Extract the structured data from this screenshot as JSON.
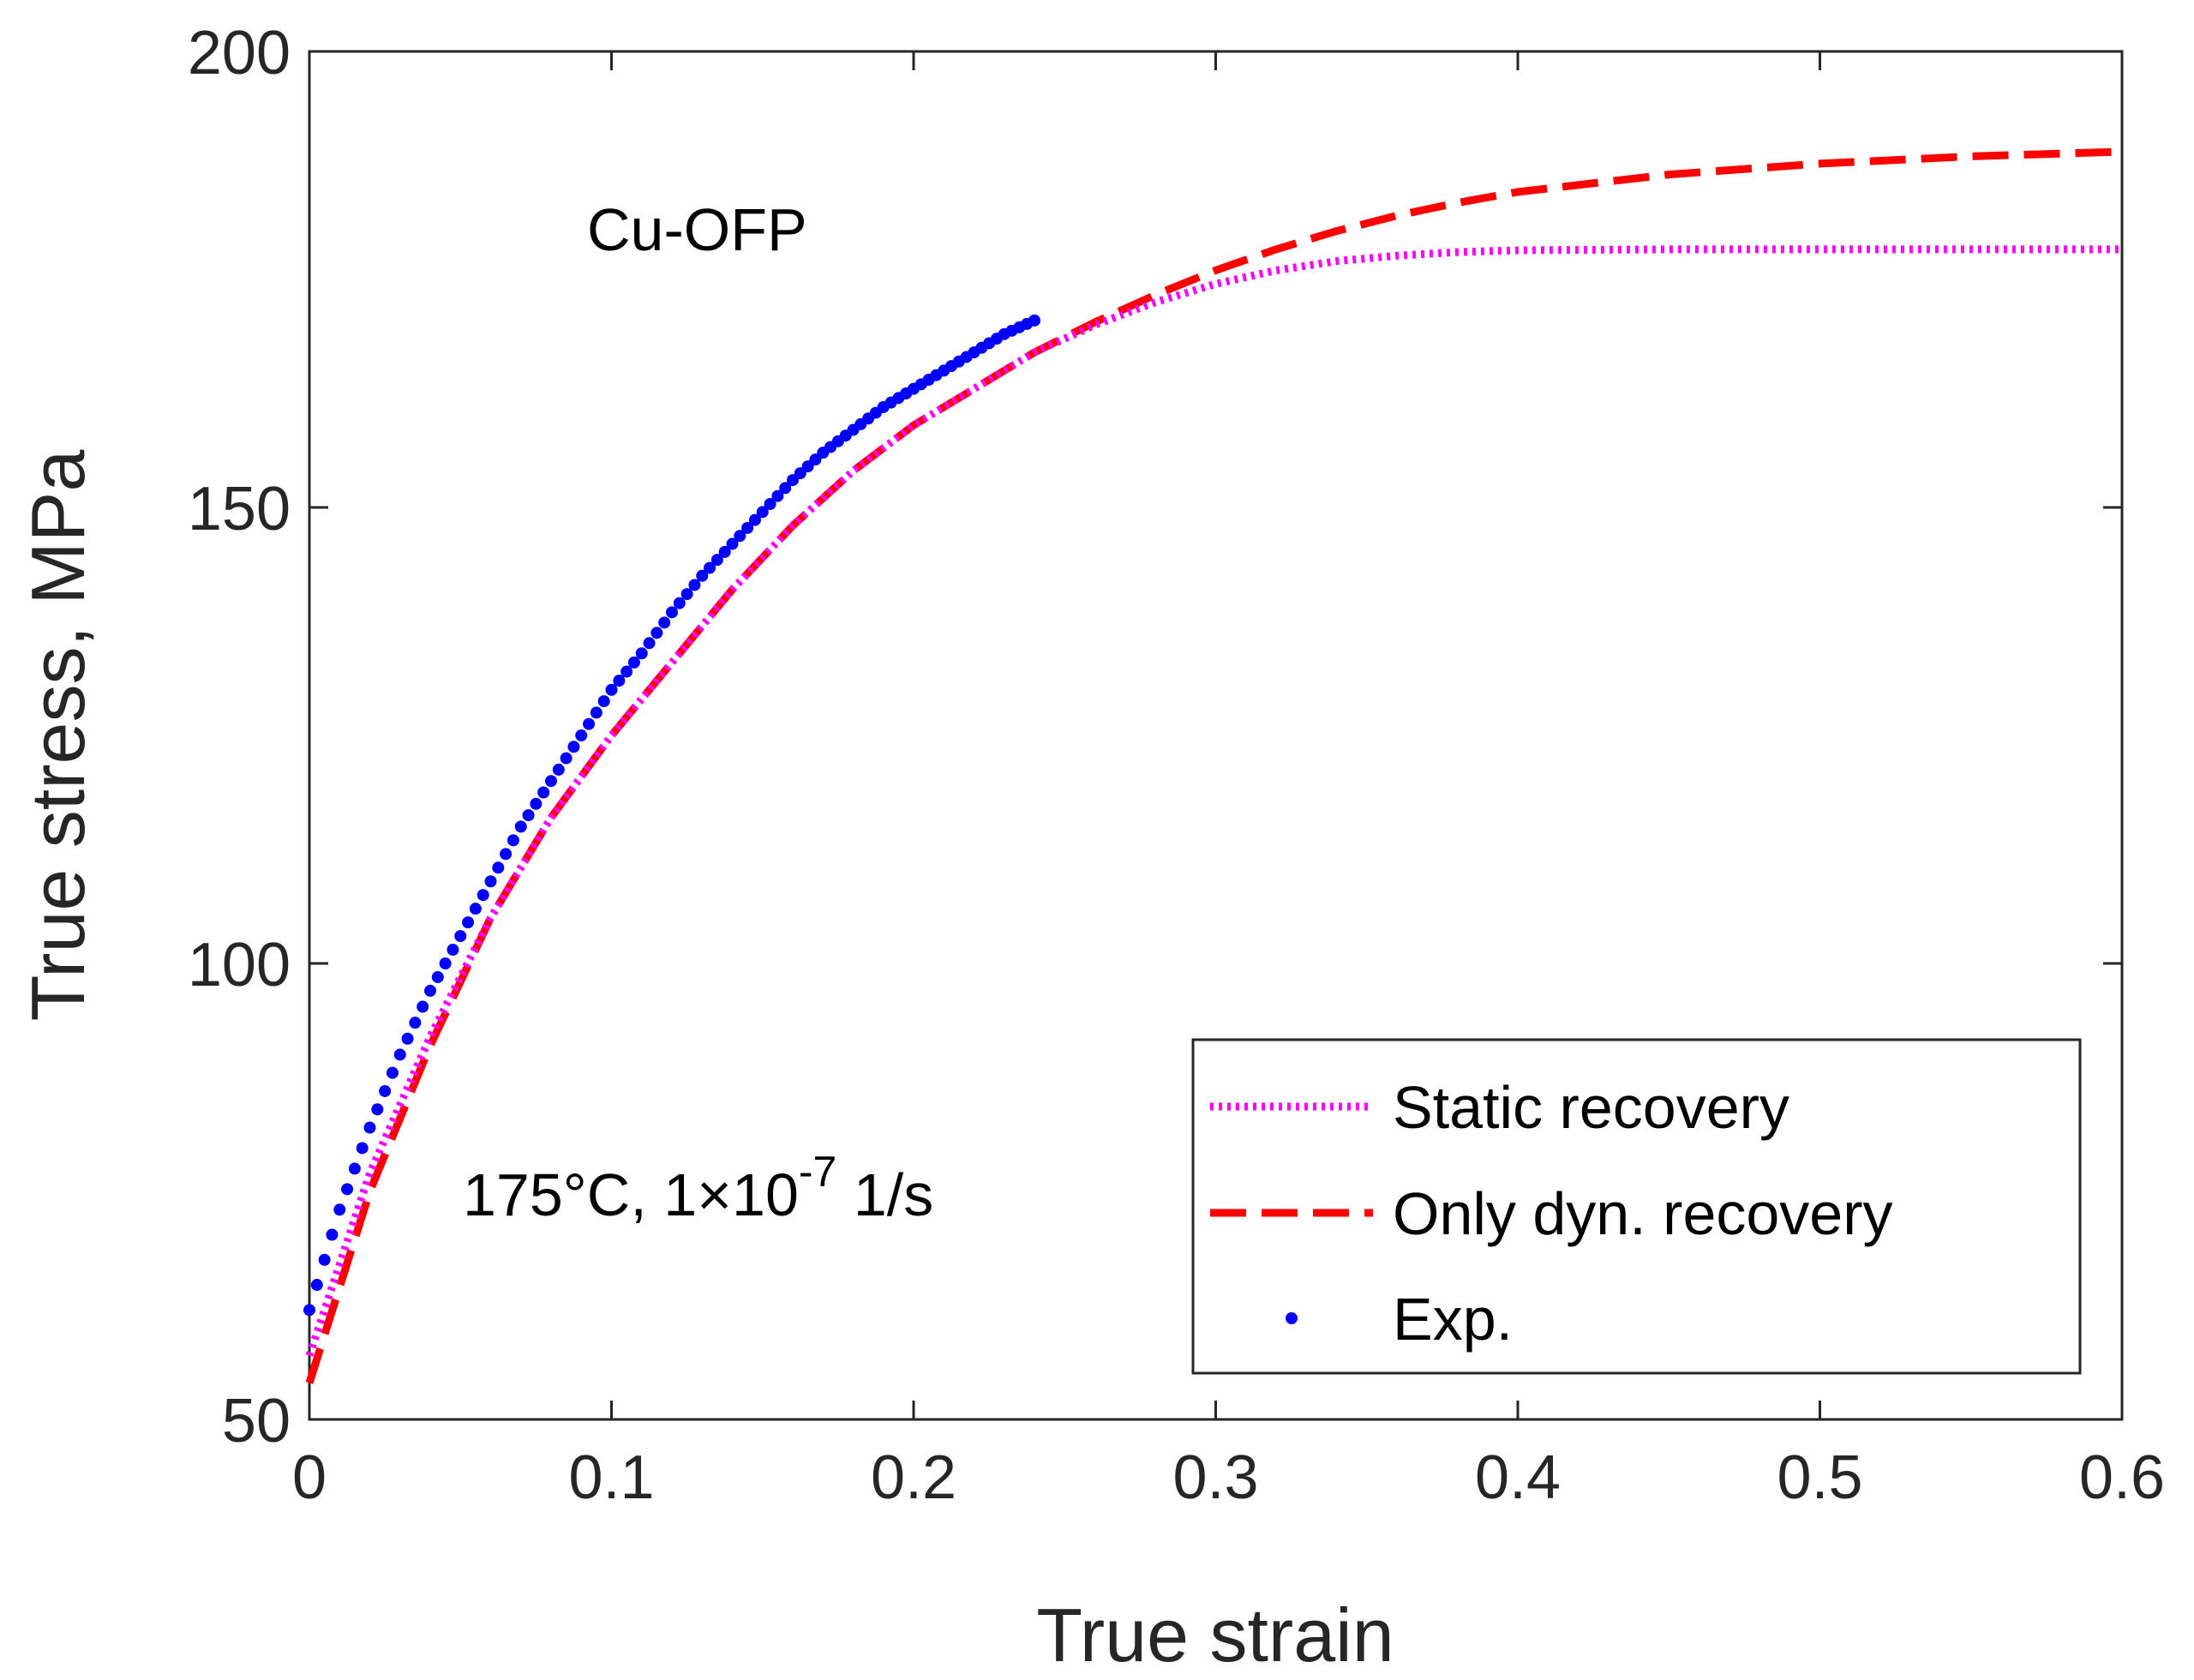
{
  "chart_data": {
    "type": "line",
    "xlabel": "True strain",
    "ylabel": "True stress, MPa",
    "xlim": [
      0,
      0.6
    ],
    "ylim": [
      50,
      200
    ],
    "xticks": [
      0,
      0.1,
      0.2,
      0.3,
      0.4,
      0.5,
      0.6
    ],
    "xtick_labels": [
      "0",
      "0.1",
      "0.2",
      "0.3",
      "0.4",
      "0.5",
      "0.6"
    ],
    "yticks": [
      50,
      100,
      150,
      200
    ],
    "ytick_labels": [
      "50",
      "100",
      "150",
      "200"
    ],
    "annotations": {
      "material": "Cu-OFP",
      "condition_main": "175°C, 1×10",
      "condition_exp": "-7",
      "condition_unit": " 1/s"
    },
    "legend_position": "bottom-right",
    "series": [
      {
        "name": "Static recovery",
        "color": "#ff00ff",
        "style": "dotted",
        "x": [
          0,
          0.02,
          0.04,
          0.06,
          0.08,
          0.1,
          0.12,
          0.14,
          0.16,
          0.18,
          0.2,
          0.22,
          0.24,
          0.26,
          0.28,
          0.3,
          0.32,
          0.34,
          0.36,
          0.38,
          0.4,
          0.45,
          0.5,
          0.55,
          0.6
        ],
        "y": [
          57,
          77,
          92,
          105,
          116,
          125,
          133,
          141,
          148,
          154,
          159,
          163,
          167,
          170,
          172.5,
          174.5,
          176,
          177,
          177.6,
          178,
          178.2,
          178.3,
          178.3,
          178.3,
          178.3
        ]
      },
      {
        "name": "Only dyn. recovery",
        "color": "#ff0000",
        "style": "dashed",
        "x": [
          0,
          0.02,
          0.04,
          0.06,
          0.08,
          0.1,
          0.12,
          0.14,
          0.16,
          0.18,
          0.2,
          0.22,
          0.24,
          0.26,
          0.28,
          0.3,
          0.32,
          0.34,
          0.36,
          0.38,
          0.4,
          0.45,
          0.5,
          0.55,
          0.6
        ],
        "y": [
          54,
          75,
          91,
          105,
          116,
          125,
          133,
          141,
          148,
          154,
          159,
          163,
          167,
          170.3,
          173.3,
          176,
          178.3,
          180.3,
          182,
          183.4,
          184.6,
          186.5,
          187.7,
          188.5,
          189
        ]
      },
      {
        "name": "Exp.",
        "color": "#0000ff",
        "style": "markers",
        "x": [
          0,
          0.01,
          0.02,
          0.03,
          0.04,
          0.05,
          0.06,
          0.07,
          0.08,
          0.09,
          0.1,
          0.11,
          0.12,
          0.13,
          0.14,
          0.15,
          0.16,
          0.17,
          0.18,
          0.19,
          0.2,
          0.21,
          0.22,
          0.23,
          0.24
        ],
        "y": [
          62,
          73,
          82,
          90,
          97,
          103,
          109,
          115,
          120,
          125,
          130,
          134,
          138.5,
          142.5,
          146,
          149.5,
          153,
          156,
          158.5,
          161,
          163,
          165,
          167,
          169,
          170.5
        ]
      }
    ]
  }
}
